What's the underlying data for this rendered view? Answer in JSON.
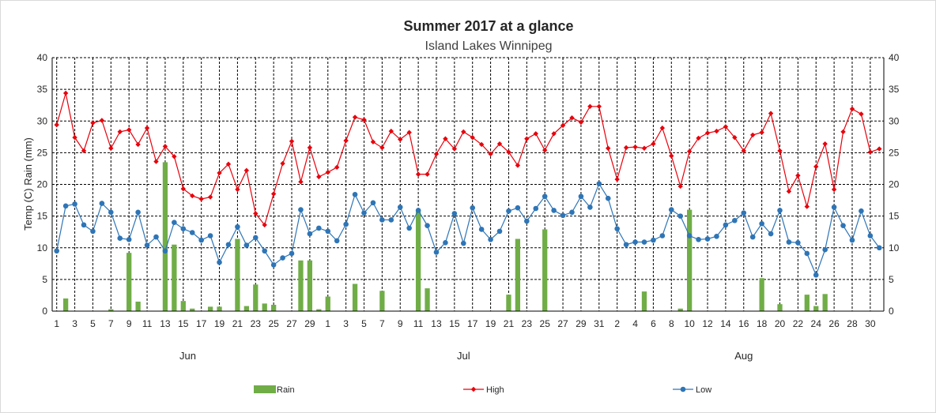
{
  "chart_data": {
    "type": "bar+line",
    "title": "Summer 2017 at a glance",
    "subtitle": "Island Lakes Winnipeg",
    "ylabel": "Temp (C) Rain (mm)",
    "xlabel": "",
    "ylim": [
      0,
      40
    ],
    "yticks": [
      0,
      5,
      10,
      15,
      20,
      25,
      30,
      35,
      40
    ],
    "grid": true,
    "legend_position": "bottom",
    "months": [
      {
        "name": "Jun",
        "days": 30
      },
      {
        "name": "Jul",
        "days": 31
      },
      {
        "name": "Aug",
        "days": 31
      }
    ],
    "x_tick_labels": [
      "1",
      "3",
      "5",
      "7",
      "9",
      "11",
      "13",
      "15",
      "17",
      "19",
      "21",
      "23",
      "25",
      "27",
      "29",
      "1",
      "3",
      "5",
      "7",
      "9",
      "11",
      "13",
      "15",
      "17",
      "19",
      "21",
      "23",
      "25",
      "27",
      "29",
      "31",
      "2",
      "4",
      "6",
      "8",
      "10",
      "12",
      "14",
      "16",
      "18",
      "20",
      "22",
      "24",
      "26",
      "28",
      "30"
    ],
    "colors": {
      "rain": "#70ad47",
      "high": "#e8000b",
      "low": "#2e75b6",
      "grid": "#000000"
    },
    "series": [
      {
        "name": "Rain",
        "kind": "bar",
        "values": [
          0,
          2,
          0,
          0,
          0,
          0,
          0.3,
          0,
          9.2,
          1.5,
          0,
          0,
          23.5,
          10.5,
          1.6,
          0.4,
          0,
          0.7,
          0.7,
          0,
          11.4,
          0.8,
          4.2,
          1.2,
          1,
          0,
          0,
          8,
          8,
          0.3,
          2.3,
          0,
          0,
          4.3,
          0,
          0,
          3.2,
          0,
          0,
          0,
          16,
          3.6,
          0,
          0,
          0,
          0,
          0,
          0,
          0,
          0,
          2.6,
          11.4,
          0,
          0,
          12.9,
          0,
          0,
          0,
          0,
          0,
          0,
          0,
          0,
          0,
          0,
          3.1,
          0,
          0,
          0,
          0.4,
          16,
          0,
          0,
          0,
          0,
          0,
          0,
          0,
          5.2,
          0,
          1.1,
          0,
          0,
          2.6,
          0.8,
          2.7,
          0,
          0,
          0,
          0,
          0,
          0
        ]
      },
      {
        "name": "High",
        "kind": "line",
        "values": [
          29.4,
          34.4,
          27.4,
          25.3,
          29.7,
          30.1,
          25.7,
          28.3,
          28.6,
          26.3,
          28.9,
          23.6,
          26,
          24.4,
          19.3,
          18.2,
          17.7,
          18,
          21.8,
          23.2,
          19.2,
          22.2,
          15.4,
          13.6,
          18.5,
          23.3,
          26.8,
          20.4,
          25.8,
          21.2,
          21.9,
          22.7,
          26.9,
          30.6,
          30.2,
          26.7,
          25.8,
          28.4,
          27.1,
          28.2,
          21.6,
          21.6,
          24.8,
          27.2,
          25.6,
          28.3,
          27.4,
          26.3,
          24.8,
          26.4,
          25.1,
          23,
          27.2,
          28,
          25.4,
          28,
          29.3,
          30.5,
          29.8,
          32.3,
          32.3,
          25.7,
          20.8,
          25.8,
          25.9,
          25.7,
          26.4,
          28.9,
          24.5,
          19.7,
          25.2,
          27.3,
          28.1,
          28.4,
          29.1,
          27.4,
          25.3,
          27.8,
          28.2,
          31.2,
          25.3,
          18.9,
          21.4,
          16.5,
          22.8,
          26.4,
          19.2,
          28.3,
          31.9,
          31.1,
          25.1,
          25.6
        ]
      },
      {
        "name": "Low",
        "kind": "line",
        "values": [
          9.5,
          16.6,
          16.9,
          13.6,
          12.6,
          17,
          15.6,
          11.5,
          11.3,
          15.6,
          10.4,
          11.7,
          9.5,
          14,
          13,
          12.4,
          11.2,
          11.9,
          7.7,
          10.5,
          13.3,
          10.4,
          11.6,
          9.5,
          7.3,
          8.4,
          9.1,
          16,
          12.2,
          13.1,
          12.6,
          11.1,
          13.7,
          18.4,
          15.5,
          17.1,
          14.4,
          14.4,
          16.4,
          13.1,
          15.9,
          13.5,
          9.3,
          10.8,
          15.4,
          10.7,
          16.3,
          12.9,
          11.3,
          12.6,
          15.8,
          16.3,
          14.2,
          16.2,
          18.1,
          15.9,
          15.1,
          15.6,
          18.1,
          16.4,
          20.1,
          17.8,
          13,
          10.5,
          10.9,
          10.9,
          11.2,
          11.9,
          16,
          15,
          11.9,
          11.3,
          11.4,
          11.8,
          13.6,
          14.3,
          15.5,
          11.7,
          13.8,
          12.2,
          15.9,
          10.9,
          10.8,
          9.1,
          5.7,
          9.7,
          16.4,
          13.5,
          11.2,
          15.8,
          11.9,
          10
        ]
      }
    ]
  }
}
